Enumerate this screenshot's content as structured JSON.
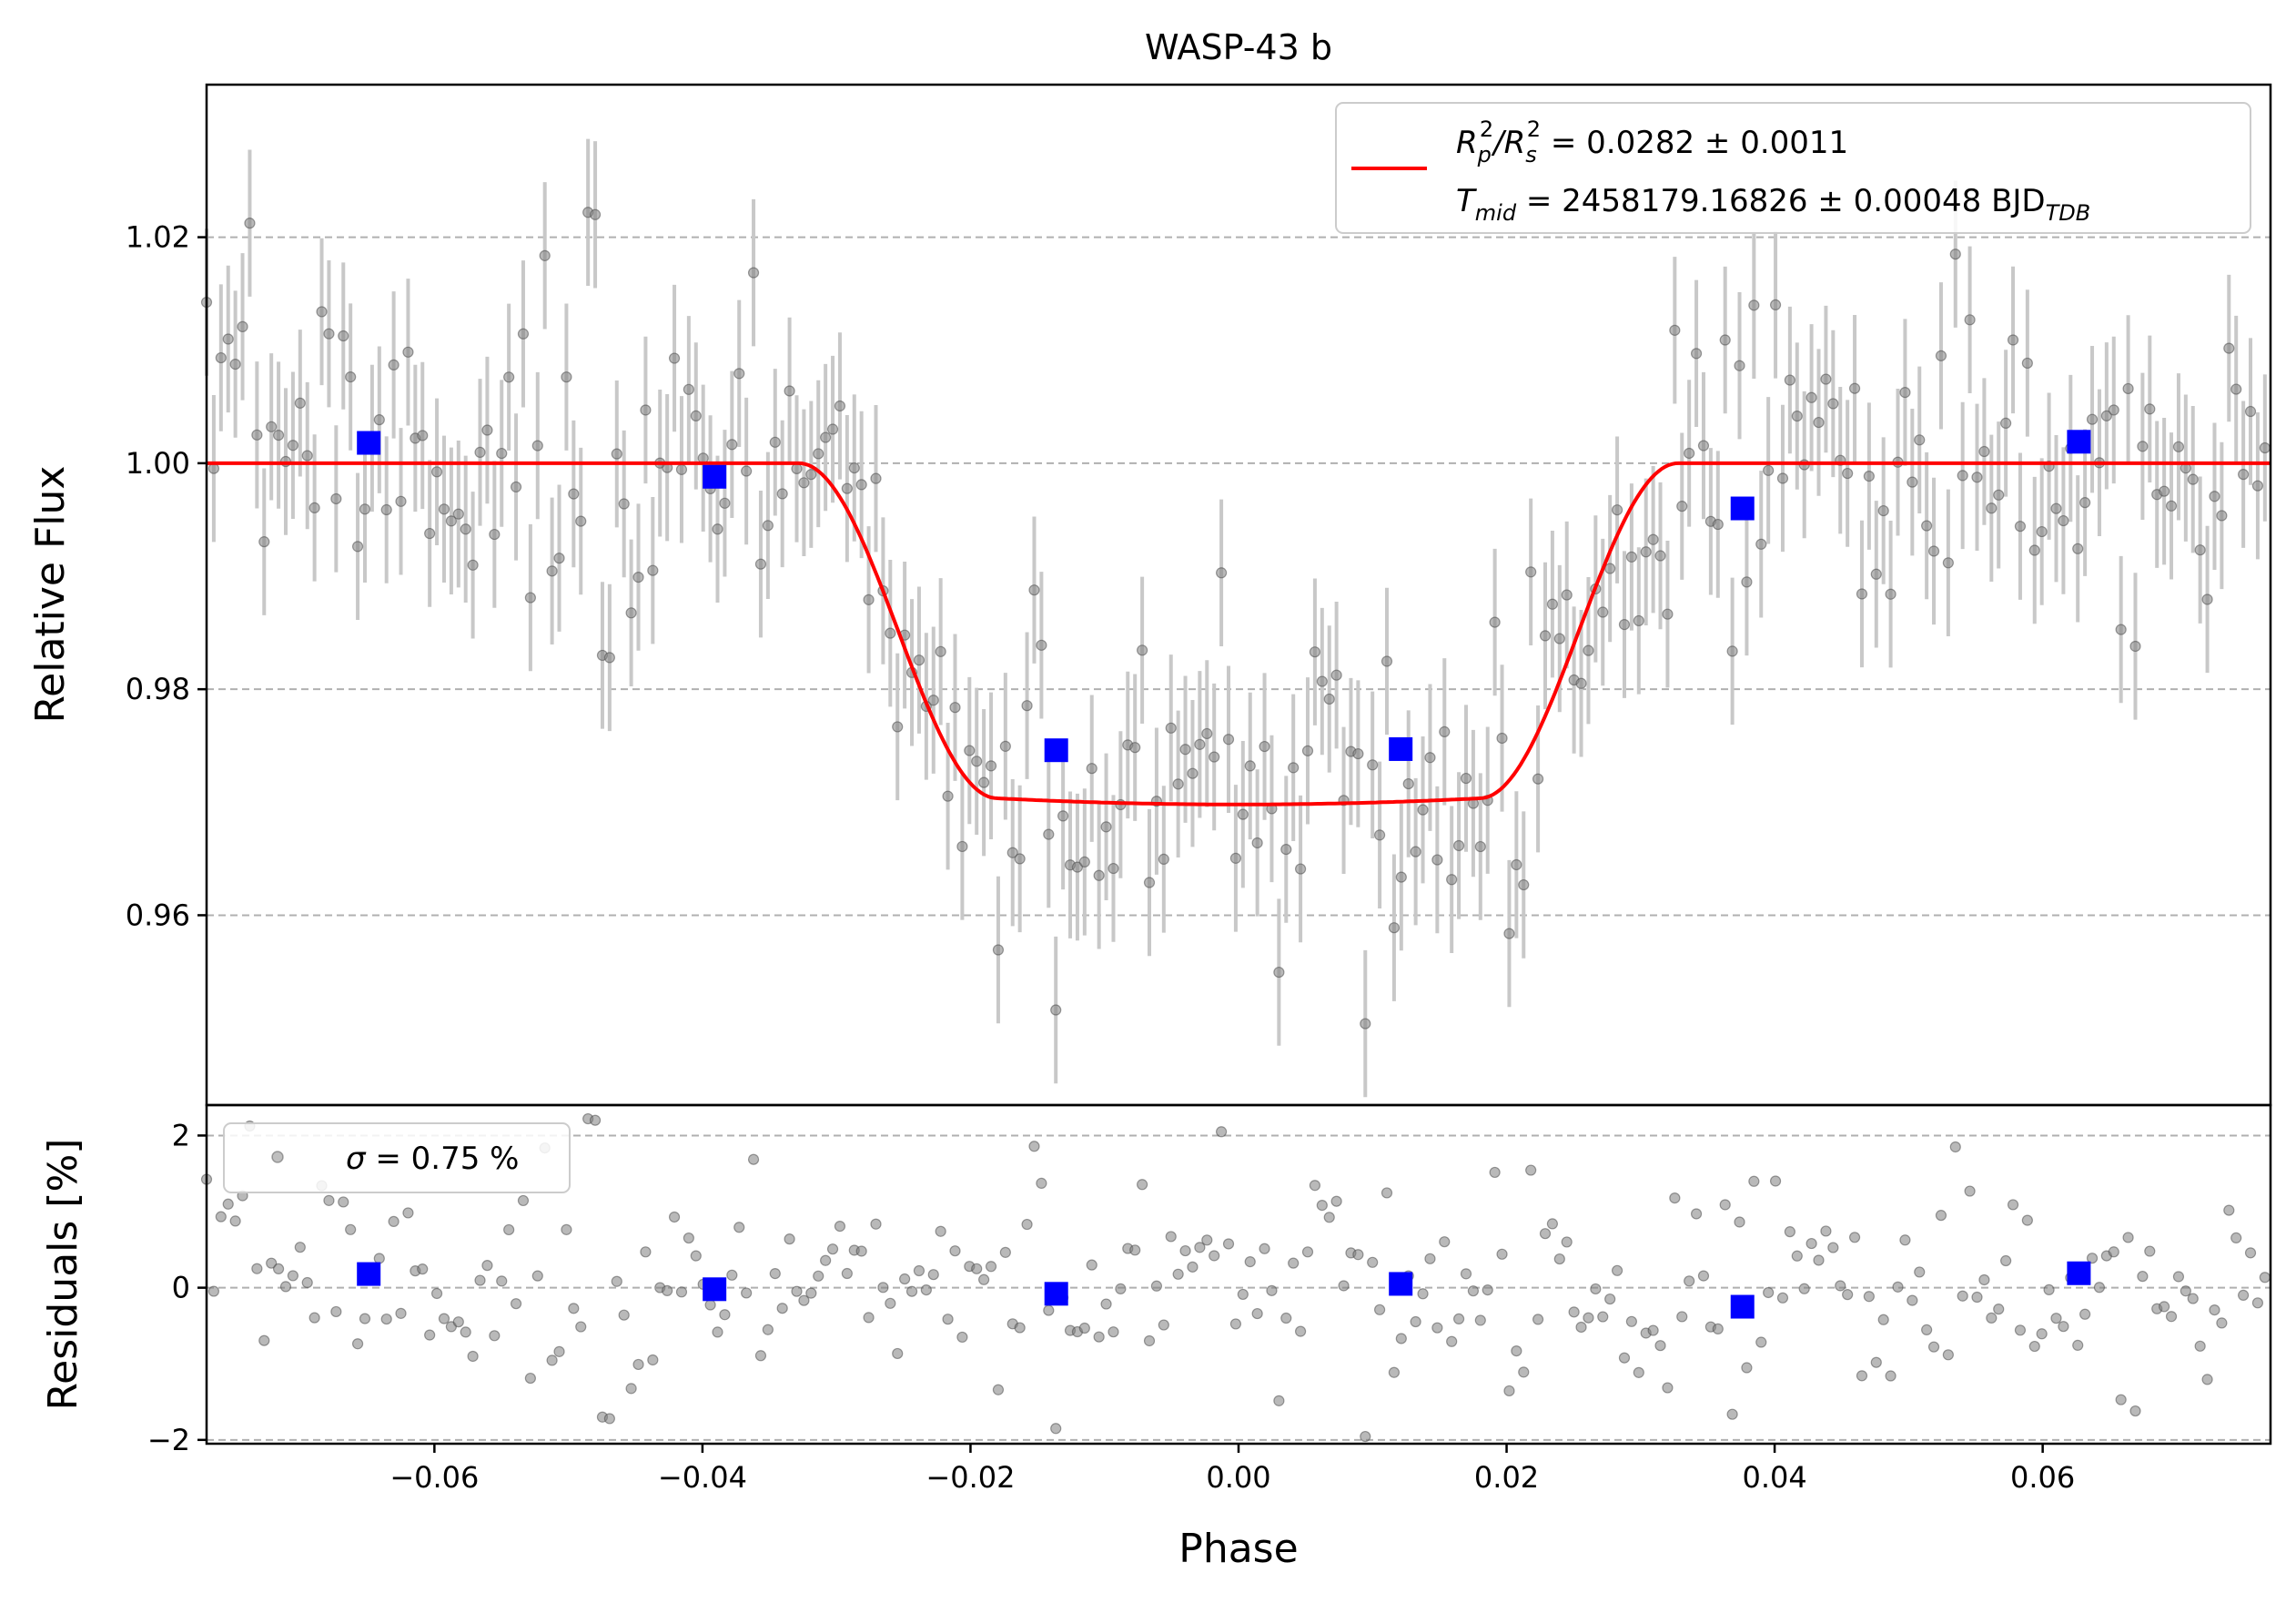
{
  "chart_data": [
    {
      "type": "scatter",
      "panel": "flux",
      "title": "WASP-43 b",
      "xlabel": "",
      "ylabel": "Relative Flux",
      "xlim": [
        -0.077,
        0.077
      ],
      "ylim": [
        0.9432,
        1.0335
      ],
      "yticks": [
        0.96,
        0.98,
        1.0,
        1.02
      ],
      "ytick_labels": [
        "0.96",
        "0.98",
        "1.00",
        "1.02"
      ],
      "grid": "horizontal dashed",
      "legend_placement": "top-right",
      "legend": {
        "line1": {
          "base": "R",
          "sub1": "p",
          "sup1": "2",
          "slash": "/R",
          "sub2": "s",
          "sup2": "2",
          "rest": " = 0.0282 ± 0.0011"
        },
        "line2": {
          "base": "T",
          "sub1": "mid",
          "rest": " = 2458179.16826 ± 0.00048 BJD",
          "sub2": "TDB"
        }
      },
      "model": {
        "name": "transit model",
        "color": "#ff0000",
        "depth": 0.0302,
        "t1": -0.0328,
        "t2": -0.018,
        "curvature": 0.00055
      },
      "binned": {
        "color": "#0000ff",
        "x": [
          -0.0649,
          -0.0391,
          -0.0136,
          0.0121,
          0.0376,
          0.0627
        ],
        "y": [
          1.0018,
          0.9988,
          0.9746,
          0.9747,
          0.996,
          1.0019
        ]
      },
      "raw_points": {
        "color": "#808080",
        "errorbar_color": "#c8c8c8",
        "error": 0.0065,
        "x_start": -0.077,
        "x_step": 0.000537,
        "count": 288,
        "residuals_percent_note": "same points as residual panel",
        "outliers": [
          {
            "x": -0.0484,
            "y": 1.0222
          },
          {
            "x": -0.0137,
            "y": 0.9545
          },
          {
            "x": -0.0474,
            "y": 0.983
          }
        ]
      }
    },
    {
      "type": "scatter",
      "panel": "residuals",
      "xlabel": "Phase",
      "ylabel": "Residuals [%]",
      "xlim": [
        -0.077,
        0.077
      ],
      "ylim": [
        -2.05,
        2.4
      ],
      "xticks": [
        -0.06,
        -0.04,
        -0.02,
        0.0,
        0.02,
        0.04,
        0.06
      ],
      "xtick_labels": [
        "−0.06",
        "−0.04",
        "−0.02",
        "0.00",
        "0.02",
        "0.04",
        "0.06"
      ],
      "yticks": [
        -2,
        0,
        2
      ],
      "ytick_labels": [
        "−2",
        "0",
        "2"
      ],
      "grid": "horizontal dashed",
      "legend_placement": "top-left",
      "legend": {
        "sigma": "σ",
        "rest": " = 0.75 %"
      },
      "binned": {
        "color": "#0000ff",
        "x": [
          -0.0649,
          -0.0391,
          -0.0136,
          0.0121,
          0.0376,
          0.0627
        ],
        "y": [
          0.18,
          -0.02,
          -0.08,
          0.05,
          -0.25,
          0.19
        ]
      },
      "std_percent": 0.75,
      "outliers": [
        {
          "x": -0.048,
          "y": 2.2
        },
        {
          "x": -0.0013,
          "y": 2.05
        },
        {
          "x": 0.0534,
          "y": 1.85
        },
        {
          "x": -0.047,
          "y": -1.72
        },
        {
          "x": -0.0135,
          "y": -1.85
        },
        {
          "x": 0.067,
          "y": -1.62
        }
      ]
    }
  ]
}
